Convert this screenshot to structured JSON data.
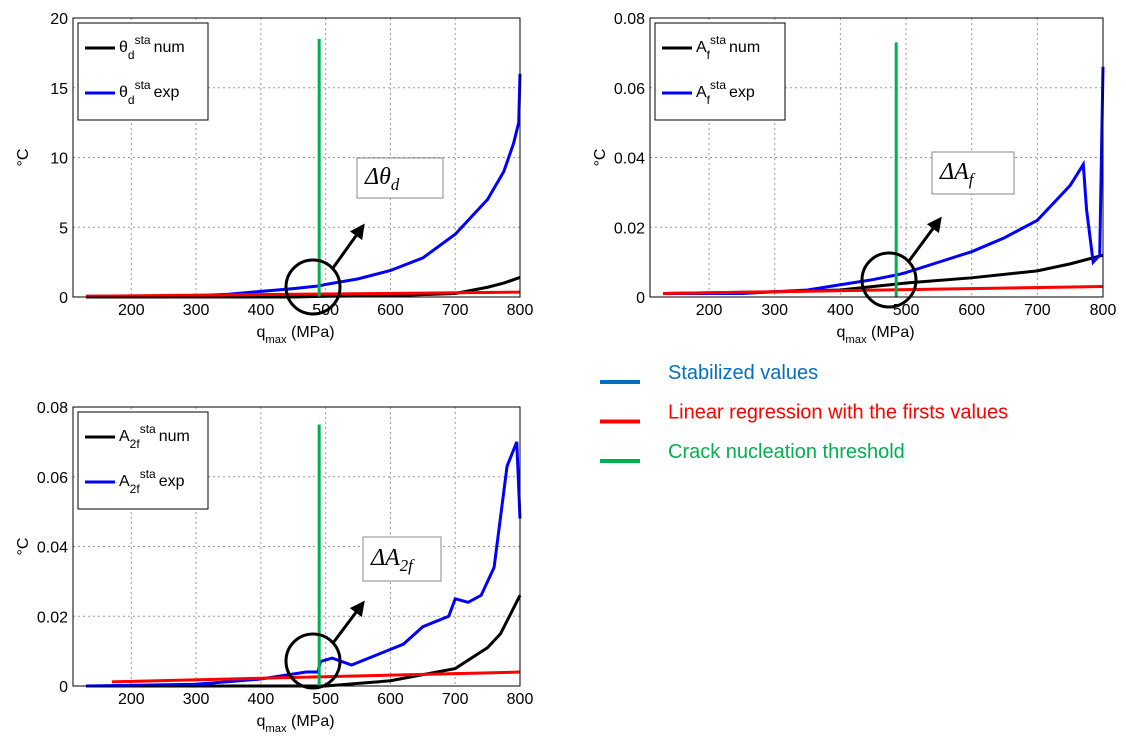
{
  "chart_data": [
    {
      "type": "line",
      "xlabel": {
        "base": "q",
        "sub": "max",
        "rest": " (MPa)"
      },
      "ylabel": "°C",
      "xlim": [
        110,
        800
      ],
      "xticks": [
        200,
        300,
        400,
        500,
        600,
        700,
        800
      ],
      "ylim": [
        0,
        20
      ],
      "yticks": [
        0,
        5,
        10,
        15,
        20
      ],
      "grid": true,
      "legend": "upper left",
      "legend_symbol": {
        "base": "θ",
        "sub": "d",
        "sup": "sta"
      },
      "annotation": {
        "base": "Δθ",
        "sub": "d"
      },
      "threshold_x": 490,
      "threshold_top": 18.5,
      "threshold_color": "#00b050",
      "series": [
        {
          "name": "num",
          "color": "#000000",
          "x": [
            130,
            300,
            450,
            500,
            600,
            700,
            750,
            775,
            800
          ],
          "values": [
            0,
            0,
            0,
            0.05,
            0.1,
            0.25,
            0.7,
            1.0,
            1.4
          ]
        },
        {
          "name": "exp",
          "color": "#0000ff",
          "x": [
            130,
            200,
            250,
            300,
            350,
            400,
            450,
            490,
            500,
            550,
            600,
            650,
            700,
            750,
            775,
            790,
            798,
            800
          ],
          "values": [
            0.05,
            0.05,
            0.05,
            0.1,
            0.2,
            0.4,
            0.6,
            0.8,
            0.9,
            1.3,
            1.9,
            2.8,
            4.5,
            7.0,
            9.0,
            11.0,
            12.5,
            16
          ]
        },
        {
          "color": "#ff0000",
          "x": [
            130,
            800
          ],
          "values": [
            0.05,
            0.35
          ]
        }
      ]
    },
    {
      "type": "line",
      "xlabel": {
        "base": "q",
        "sub": "max",
        "rest": " (MPa)"
      },
      "ylabel": "°C",
      "xlim": [
        110,
        800
      ],
      "xticks": [
        200,
        300,
        400,
        500,
        600,
        700,
        800
      ],
      "ylim": [
        0,
        0.08
      ],
      "yticks": [
        0,
        0.02,
        0.04,
        0.06,
        0.08
      ],
      "grid": true,
      "legend": "upper left",
      "legend_symbol": {
        "base": "A",
        "sub": "f",
        "sup": "sta"
      },
      "annotation": {
        "base": "ΔA",
        "sub": "f"
      },
      "threshold_x": 485,
      "threshold_top": 0.073,
      "threshold_color": "#00b050",
      "series": [
        {
          "name": "num",
          "color": "#000000",
          "x": [
            130,
            300,
            400,
            450,
            500,
            600,
            700,
            750,
            790,
            800
          ],
          "values": [
            0.001,
            0.0015,
            0.002,
            0.003,
            0.004,
            0.0055,
            0.0075,
            0.0095,
            0.0115,
            0.012
          ]
        },
        {
          "name": "exp",
          "color": "#0000ff",
          "x": [
            130,
            250,
            300,
            350,
            400,
            450,
            490,
            500,
            550,
            600,
            650,
            700,
            730,
            750,
            770,
            775,
            785,
            795,
            800
          ],
          "values": [
            0.001,
            0.001,
            0.0015,
            0.002,
            0.0035,
            0.005,
            0.0065,
            0.007,
            0.01,
            0.013,
            0.017,
            0.022,
            0.028,
            0.032,
            0.038,
            0.025,
            0.01,
            0.012,
            0.066
          ]
        },
        {
          "color": "#ff0000",
          "x": [
            130,
            800
          ],
          "values": [
            0.001,
            0.003
          ]
        }
      ]
    },
    {
      "type": "line",
      "xlabel": {
        "base": "q",
        "sub": "max",
        "rest": " (MPa)"
      },
      "ylabel": "°C",
      "xlim": [
        110,
        800
      ],
      "xticks": [
        200,
        300,
        400,
        500,
        600,
        700,
        800
      ],
      "ylim": [
        0,
        0.08
      ],
      "yticks": [
        0,
        0.02,
        0.04,
        0.06,
        0.08
      ],
      "grid": true,
      "legend": "upper left",
      "legend_symbol": {
        "base": "A",
        "sub": "2f",
        "sup": "sta"
      },
      "annotation": {
        "base": "ΔA",
        "sub": "2f"
      },
      "threshold_x": 490,
      "threshold_top": 0.075,
      "threshold_color": "#00b050",
      "series": [
        {
          "name": "num",
          "color": "#000000",
          "x": [
            130,
            500,
            600,
            700,
            750,
            770,
            800
          ],
          "values": [
            0,
            0,
            0.0015,
            0.005,
            0.011,
            0.015,
            0.026
          ]
        },
        {
          "name": "exp",
          "color": "#0000ff",
          "x": [
            130,
            300,
            400,
            470,
            488,
            492,
            510,
            540,
            580,
            620,
            650,
            690,
            700,
            720,
            740,
            760,
            780,
            795,
            800
          ],
          "values": [
            0,
            0.0005,
            0.002,
            0.004,
            0.004,
            0.007,
            0.008,
            0.006,
            0.009,
            0.012,
            0.017,
            0.02,
            0.025,
            0.024,
            0.026,
            0.034,
            0.063,
            0.07,
            0.048
          ]
        },
        {
          "color": "#ff0000",
          "x": [
            170,
            800
          ],
          "values": [
            0.0012,
            0.004
          ]
        }
      ]
    }
  ],
  "legend": [
    {
      "name": "Stabilized values",
      "color": "#0070c0"
    },
    {
      "name": "Linear regression with the firsts values",
      "color": "#ff0000"
    },
    {
      "name": "Crack nucleation threshold",
      "color": "#00b050"
    }
  ]
}
